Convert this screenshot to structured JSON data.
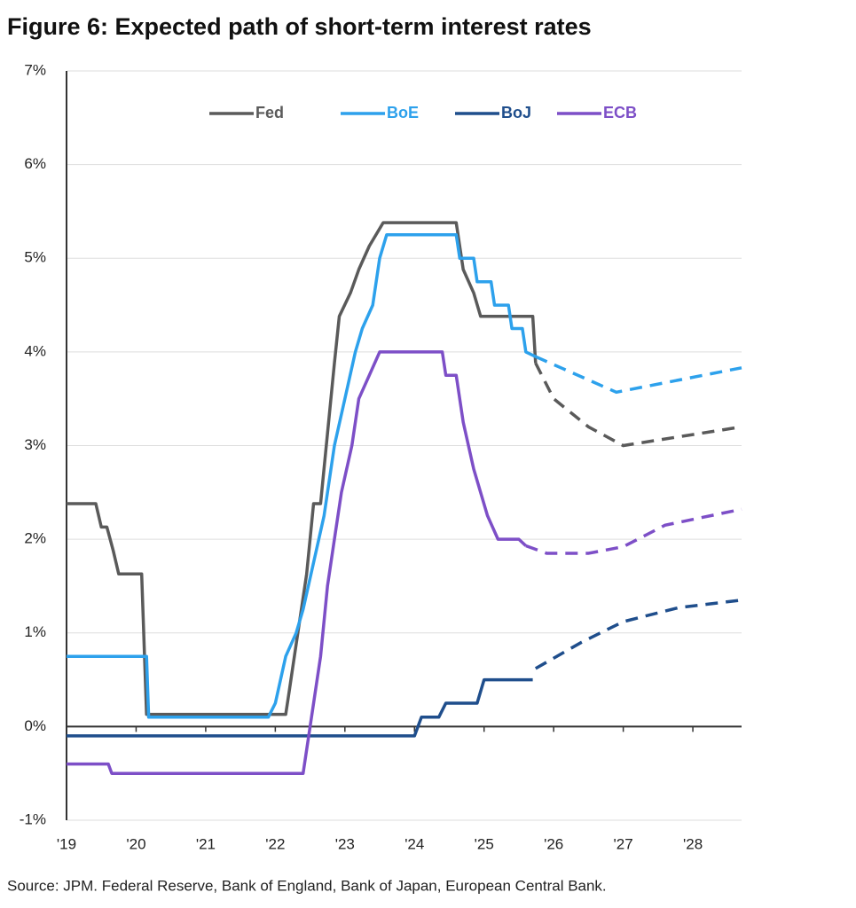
{
  "chart_data": {
    "type": "line",
    "title": "Figure 6: Expected path of short-term interest rates",
    "source": "Source: JPM. Federal Reserve, Bank of England, Bank of Japan, European Central Bank.",
    "xlim": [
      2019,
      2028.7
    ],
    "ylim": [
      -1,
      7
    ],
    "xticks": [
      {
        "value": 2019,
        "label": "'19"
      },
      {
        "value": 2020,
        "label": "'20"
      },
      {
        "value": 2021,
        "label": "'21"
      },
      {
        "value": 2022,
        "label": "'22"
      },
      {
        "value": 2023,
        "label": "'23"
      },
      {
        "value": 2024,
        "label": "'24"
      },
      {
        "value": 2025,
        "label": "'25"
      },
      {
        "value": 2026,
        "label": "'26"
      },
      {
        "value": 2027,
        "label": "'27"
      },
      {
        "value": 2028,
        "label": "'28"
      }
    ],
    "yticks": [
      {
        "value": -1,
        "label": "-1%"
      },
      {
        "value": 0,
        "label": "0%"
      },
      {
        "value": 1,
        "label": "1%"
      },
      {
        "value": 2,
        "label": "2%"
      },
      {
        "value": 3,
        "label": "3%"
      },
      {
        "value": 4,
        "label": "4%"
      },
      {
        "value": 5,
        "label": "5%"
      },
      {
        "value": 6,
        "label": "6%"
      },
      {
        "value": 7,
        "label": "7%"
      }
    ],
    "grid": true,
    "legend_position": "top",
    "series": [
      {
        "name": "Fed",
        "color": "#5a5a5a",
        "x": [
          2019,
          2019.42,
          2019.5,
          2019.58,
          2019.67,
          2019.75,
          2020.08,
          2020.15,
          2022.0,
          2022.15,
          2022.2,
          2022.3,
          2022.45,
          2022.55,
          2022.65,
          2022.75,
          2022.85,
          2022.92,
          2023.08,
          2023.2,
          2023.35,
          2023.55,
          2024.6,
          2024.7,
          2024.85,
          2024.95,
          2025.7,
          2025.74
        ],
        "values": [
          2.38,
          2.38,
          2.13,
          2.13,
          1.88,
          1.63,
          1.63,
          0.13,
          0.13,
          0.13,
          0.38,
          0.88,
          1.63,
          2.38,
          2.38,
          3.13,
          3.88,
          4.38,
          4.63,
          4.88,
          5.13,
          5.38,
          5.38,
          4.88,
          4.63,
          4.38,
          4.38,
          3.88
        ],
        "projection_x": [
          2025.74,
          2026.0,
          2026.5,
          2027.0,
          2028.7
        ],
        "projection_values": [
          3.88,
          3.5,
          3.2,
          3.0,
          3.2
        ]
      },
      {
        "name": "BoE",
        "color": "#2da1ec",
        "x": [
          2019,
          2020.15,
          2020.18,
          2021.9,
          2022.0,
          2022.15,
          2022.3,
          2022.4,
          2022.55,
          2022.7,
          2022.85,
          2023.0,
          2023.15,
          2023.25,
          2023.4,
          2023.5,
          2023.6,
          2024.6,
          2024.65,
          2024.85,
          2024.9,
          2025.1,
          2025.15,
          2025.35,
          2025.4,
          2025.55,
          2025.6,
          2025.74
        ],
        "values": [
          0.75,
          0.75,
          0.1,
          0.1,
          0.25,
          0.75,
          1.0,
          1.25,
          1.75,
          2.25,
          3.0,
          3.5,
          4.0,
          4.25,
          4.5,
          5.0,
          5.25,
          5.25,
          5.0,
          5.0,
          4.75,
          4.75,
          4.5,
          4.5,
          4.25,
          4.25,
          4.0,
          3.95
        ],
        "projection_x": [
          2025.74,
          2026.9,
          2028.7
        ],
        "projection_values": [
          3.95,
          3.57,
          3.83
        ]
      },
      {
        "name": "BoJ",
        "color": "#1f4e8c",
        "x": [
          2019,
          2024.0,
          2024.1,
          2024.35,
          2024.45,
          2024.9,
          2025.0,
          2025.7
        ],
        "values": [
          -0.1,
          -0.1,
          0.1,
          0.1,
          0.25,
          0.25,
          0.5,
          0.5
        ],
        "projection_x": [
          2025.74,
          2026.4,
          2027.0,
          2027.8,
          2028.7
        ],
        "projection_values": [
          0.62,
          0.9,
          1.12,
          1.27,
          1.35
        ]
      },
      {
        "name": "ECB",
        "color": "#7d4fc7",
        "x": [
          2019,
          2019.6,
          2019.65,
          2022.4,
          2022.5,
          2022.65,
          2022.75,
          2022.85,
          2022.95,
          2023.1,
          2023.2,
          2023.35,
          2023.5,
          2024.4,
          2024.45,
          2024.6,
          2024.7,
          2024.85,
          2025.05,
          2025.2,
          2025.5,
          2025.6
        ],
        "values": [
          -0.4,
          -0.4,
          -0.5,
          -0.5,
          0,
          0.75,
          1.5,
          2.0,
          2.5,
          3.0,
          3.5,
          3.75,
          4.0,
          4.0,
          3.75,
          3.75,
          3.25,
          2.75,
          2.25,
          2.0,
          2.0,
          1.93
        ],
        "projection_x": [
          2025.6,
          2025.9,
          2026.5,
          2027.0,
          2027.6,
          2028.7
        ],
        "projection_values": [
          1.93,
          1.85,
          1.85,
          1.92,
          2.15,
          2.32
        ]
      }
    ]
  }
}
